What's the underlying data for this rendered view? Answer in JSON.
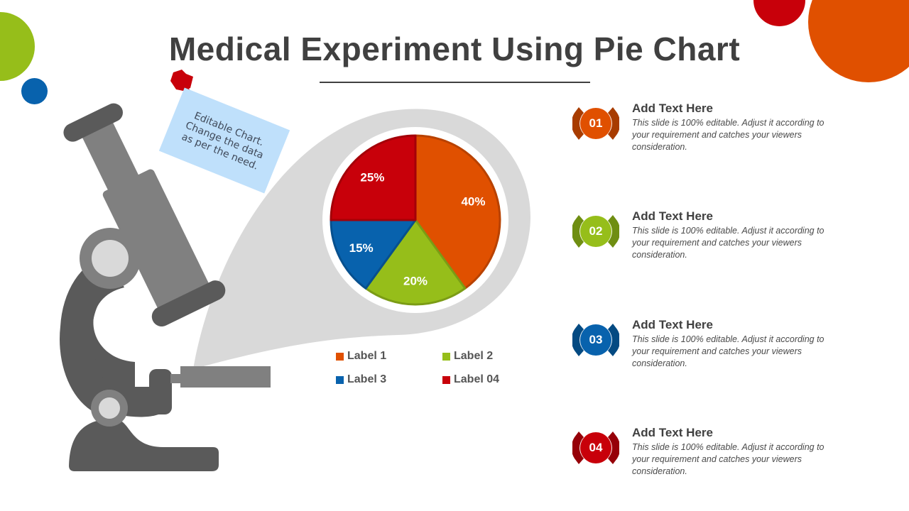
{
  "title": "Medical Experiment Using Pie Chart",
  "note": "Editable Chart. Change the data as per the need.",
  "colors": {
    "orange": "#e05000",
    "green": "#96be1a",
    "blue": "#0862ad",
    "red": "#c8000a",
    "gray_dark": "#5a5a5a",
    "gray_mid": "#808080",
    "gray_light": "#d9d9d9"
  },
  "chart_data": {
    "type": "pie",
    "title": "",
    "categories": [
      "Label 1",
      "Label 2",
      "Label 3",
      "Label 04"
    ],
    "values": [
      40,
      20,
      15,
      25
    ],
    "value_labels": [
      "40%",
      "20%",
      "15%",
      "25%"
    ],
    "colors": [
      "#e05000",
      "#96be1a",
      "#0862ad",
      "#c8000a"
    ],
    "start_angle_deg": 0,
    "direction": "clockwise",
    "legend": "bottom"
  },
  "legend": [
    {
      "label": "Label 1",
      "color": "#e05000"
    },
    {
      "label": "Label 2",
      "color": "#96be1a"
    },
    {
      "label": "Label 3",
      "color": "#0862ad"
    },
    {
      "label": "Label 04",
      "color": "#c8000a"
    }
  ],
  "items": [
    {
      "number": "01",
      "title": "Add Text Here",
      "desc": "This slide is 100% editable. Adjust it according to your requirement and catches your viewers consideration.",
      "color": "#e05000",
      "dark": "#a83c00"
    },
    {
      "number": "02",
      "title": "Add Text Here",
      "desc": "This slide is 100% editable. Adjust it according to your requirement and catches your viewers consideration.",
      "color": "#96be1a",
      "dark": "#6f8e12"
    },
    {
      "number": "03",
      "title": "Add Text Here",
      "desc": "This slide is 100% editable. Adjust it according to your requirement and catches your viewers consideration.",
      "color": "#0862ad",
      "dark": "#044a82"
    },
    {
      "number": "04",
      "title": "Add Text Here",
      "desc": "This slide is 100% editable. Adjust it according to your requirement and catches your viewers consideration.",
      "color": "#c8000a",
      "dark": "#960008"
    }
  ]
}
